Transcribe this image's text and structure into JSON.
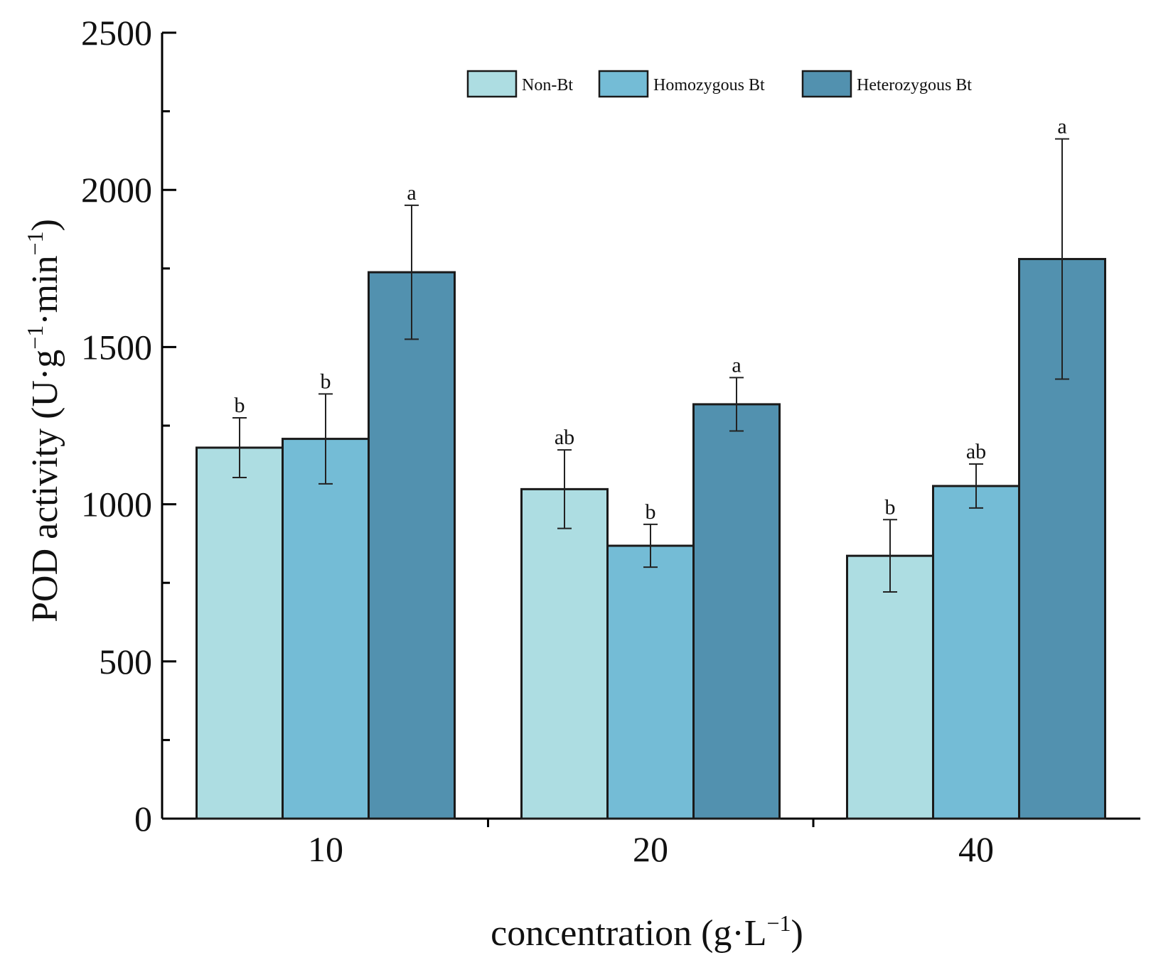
{
  "chart_data": {
    "type": "bar",
    "title": "",
    "xlabel": "concentration (g·L",
    "xlabel_sup": "−1",
    "xlabel_end": ")",
    "ylabel": "POD activity (U·g",
    "ylabel_sup1": "−1",
    "ylabel_mid": "·min",
    "ylabel_sup2": "−1",
    "ylabel_end": ")",
    "categories": [
      "10",
      "20",
      "40"
    ],
    "ylim": [
      0,
      2500
    ],
    "yticks": [
      "0",
      "500",
      "1000",
      "1500",
      "2000",
      "2500"
    ],
    "legend_position": "top-right",
    "series": [
      {
        "name": "Non-Bt",
        "color": "#ADDDE2",
        "values": [
          1180,
          1048,
          836
        ],
        "errors": [
          95,
          125,
          115
        ],
        "sig": [
          "b",
          "ab",
          "b"
        ]
      },
      {
        "name": "Homozygous Bt",
        "color": "#74BCD6",
        "values": [
          1208,
          868,
          1058
        ],
        "errors": [
          143,
          68,
          70
        ],
        "sig": [
          "b",
          "b",
          "ab"
        ]
      },
      {
        "name": "Heterozygous Bt",
        "color": "#5291AF",
        "values": [
          1738,
          1318,
          1780
        ],
        "errors": [
          213,
          85,
          382
        ],
        "sig": [
          "a",
          "a",
          "a"
        ]
      }
    ]
  }
}
